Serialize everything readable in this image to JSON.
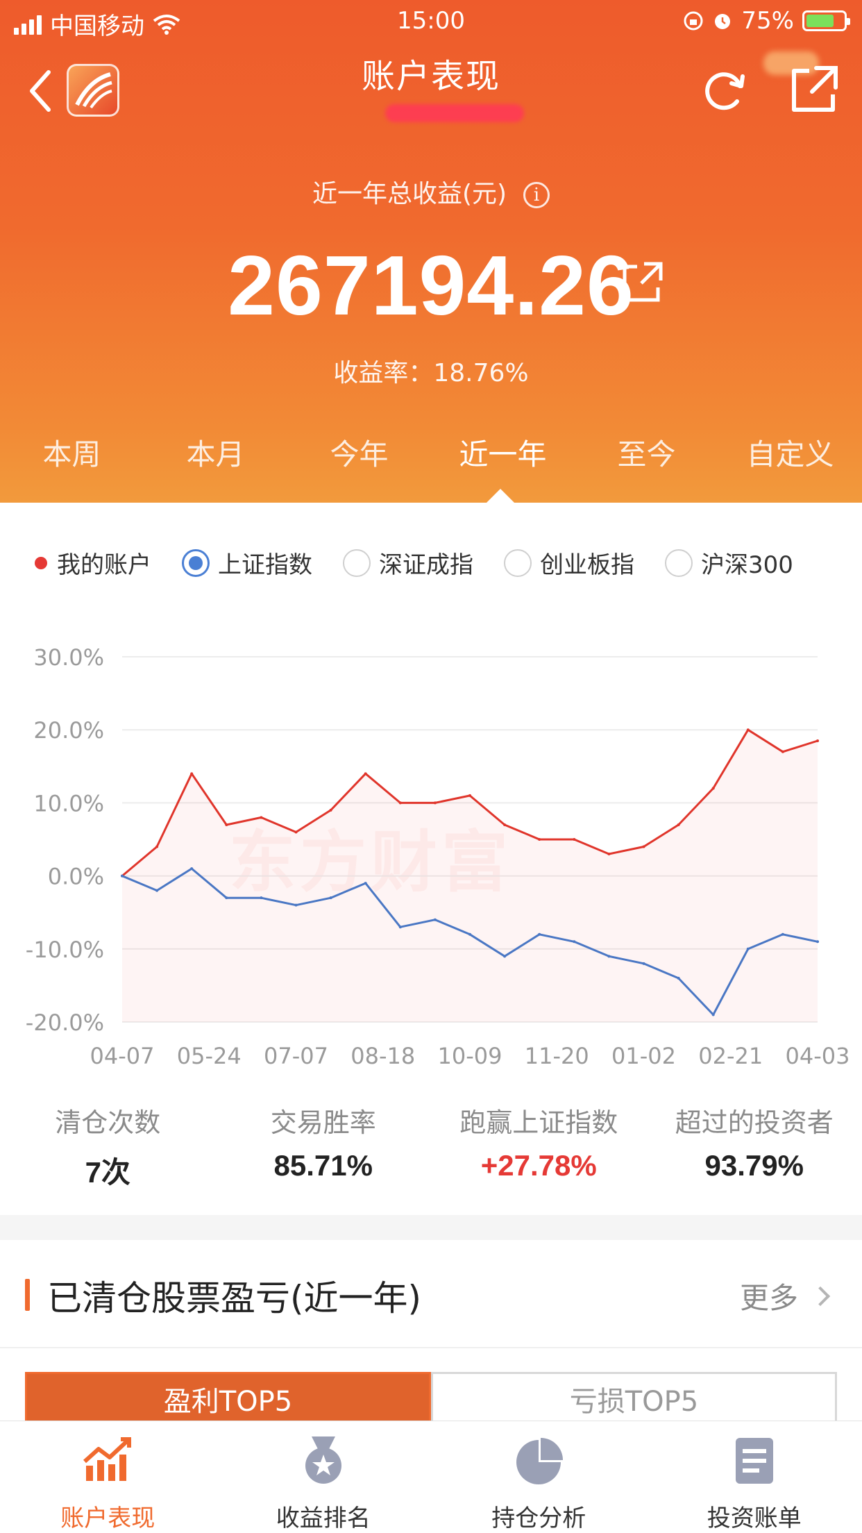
{
  "status_bar": {
    "carrier": "中国移动",
    "time": "15:00",
    "battery": "75%"
  },
  "nav": {
    "title": "账户表现"
  },
  "summary": {
    "total_label": "近一年总收益(元)",
    "info_icon": "i",
    "total_value": "267194.26",
    "rate_label": "收益率：",
    "rate_value": "18.76%"
  },
  "period_tabs": [
    {
      "label": "本周",
      "active": false
    },
    {
      "label": "本月",
      "active": false
    },
    {
      "label": "今年",
      "active": false
    },
    {
      "label": "近一年",
      "active": true
    },
    {
      "label": "至今",
      "active": false
    },
    {
      "label": "自定义",
      "active": false
    }
  ],
  "legend": {
    "my_account": "我的账户",
    "sse": "上证指数",
    "szse": "深证成指",
    "chinext": "创业板指",
    "hs300": "沪深300"
  },
  "watermark": "东方财富",
  "chart_data": {
    "type": "line",
    "x_ticks": [
      "04-07",
      "05-24",
      "07-07",
      "08-18",
      "10-09",
      "11-20",
      "01-02",
      "02-21",
      "04-03"
    ],
    "ylim": [
      -20,
      30
    ],
    "y_ticks": [
      "30.0%",
      "20.0%",
      "10.0%",
      "0.0%",
      "-10.0%",
      "-20.0%"
    ],
    "grid": true,
    "series": [
      {
        "name": "我的账户",
        "color": "#e0352b",
        "x": [
          0,
          0.4,
          0.8,
          1.2,
          1.6,
          2.0,
          2.4,
          2.8,
          3.2,
          3.6,
          4.0,
          4.4,
          4.8,
          5.2,
          5.6,
          6.0,
          6.4,
          6.8,
          7.2,
          7.6,
          8.0
        ],
        "values": [
          0,
          4,
          14,
          7,
          8,
          6,
          9,
          14,
          10,
          10,
          11,
          7,
          5,
          5,
          3,
          4,
          7,
          12,
          20,
          17,
          18.5
        ]
      },
      {
        "name": "上证指数",
        "color": "#4a77c4",
        "x": [
          0,
          0.4,
          0.8,
          1.2,
          1.6,
          2.0,
          2.4,
          2.8,
          3.2,
          3.6,
          4.0,
          4.4,
          4.8,
          5.2,
          5.6,
          6.0,
          6.4,
          6.8,
          7.2,
          7.6,
          8.0
        ],
        "values": [
          0,
          -2,
          1,
          -3,
          -3,
          -4,
          -3,
          -1,
          -7,
          -6,
          -8,
          -11,
          -8,
          -9,
          -11,
          -12,
          -14,
          -19,
          -10,
          -8,
          -9
        ]
      }
    ]
  },
  "stats": [
    {
      "label": "清仓次数",
      "value": "7次",
      "highlight": false
    },
    {
      "label": "交易胜率",
      "value": "85.71%",
      "highlight": false
    },
    {
      "label": "跑赢上证指数",
      "value": "+27.78%",
      "highlight": true
    },
    {
      "label": "超过的投资者",
      "value": "93.79%",
      "highlight": false
    }
  ],
  "closed_section": {
    "title": "已清仓股票盈亏(近一年)",
    "more": "更多",
    "tab_profit": "盈利TOP5",
    "tab_loss": "亏损TOP5"
  },
  "bottom_tabs": [
    {
      "label": "账户表现",
      "icon": "chart-trend-icon",
      "active": true
    },
    {
      "label": "收益排名",
      "icon": "medal-icon",
      "active": false
    },
    {
      "label": "持仓分析",
      "icon": "pie-chart-icon",
      "active": false
    },
    {
      "label": "投资账单",
      "icon": "document-list-icon",
      "active": false
    }
  ]
}
